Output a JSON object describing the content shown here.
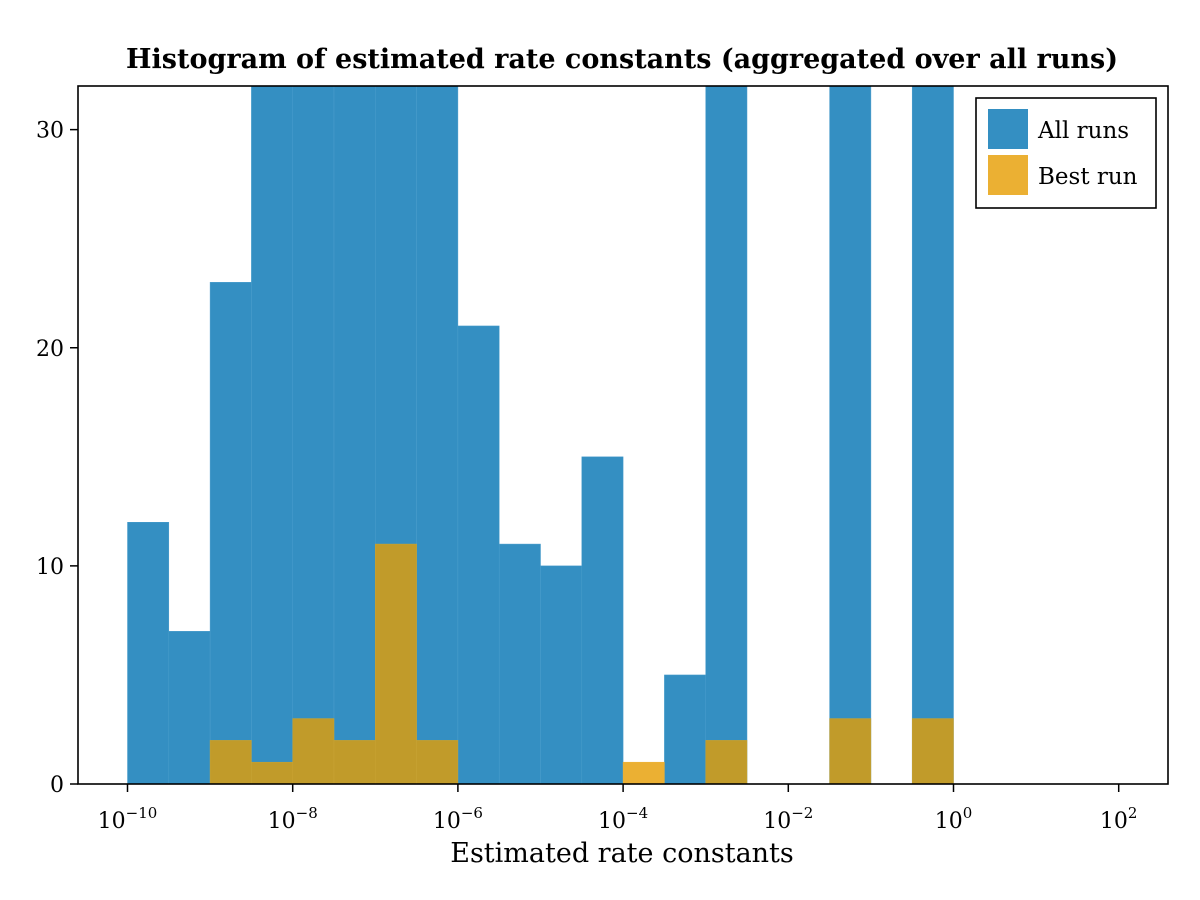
{
  "chart_data": {
    "type": "bar",
    "title": "Histogram of estimated rate constants (aggregated over all runs)",
    "xlabel": "Estimated rate constants",
    "ylabel": "",
    "x_scale": "log10",
    "xlim": [
      1e-10,
      100.0
    ],
    "ylim": [
      0,
      32
    ],
    "y_ticks": [
      0,
      10,
      20,
      30
    ],
    "x_ticks": [
      {
        "value": 1e-10,
        "base": "10",
        "exp": "−10"
      },
      {
        "value": 1e-08,
        "base": "10",
        "exp": "−8"
      },
      {
        "value": 1e-06,
        "base": "10",
        "exp": "−6"
      },
      {
        "value": 0.0001,
        "base": "10",
        "exp": "−4"
      },
      {
        "value": 0.01,
        "base": "10",
        "exp": "−2"
      },
      {
        "value": 1.0,
        "base": "10",
        "exp": "0"
      },
      {
        "value": 100.0,
        "base": "10",
        "exp": "2"
      }
    ],
    "bin_edges_log10": [
      -10,
      -9.5,
      -9,
      -8.5,
      -8,
      -7.5,
      -7,
      -6.5,
      -6,
      -5.5,
      -5,
      -4.5,
      -4,
      -3.5,
      -3,
      -2.5,
      -2,
      -1.5,
      -1,
      -0.5,
      0
    ],
    "series": [
      {
        "name": "All runs",
        "color": "#348fc2",
        "values": [
          12,
          7,
          23,
          32,
          32,
          32,
          32,
          32,
          21,
          11,
          10,
          15,
          0,
          5,
          32,
          0,
          0,
          32,
          0,
          32
        ]
      },
      {
        "name": "Best run",
        "color": "#ebb033",
        "values": [
          0,
          0,
          2,
          1,
          3,
          2,
          11,
          2,
          0,
          0,
          0,
          0,
          1,
          0,
          2,
          0,
          0,
          3,
          0,
          3
        ]
      }
    ],
    "overlap_color": "#c19b2a",
    "grid": false,
    "legend": {
      "position": "top-right",
      "entries": [
        "All runs",
        "Best run"
      ]
    }
  }
}
